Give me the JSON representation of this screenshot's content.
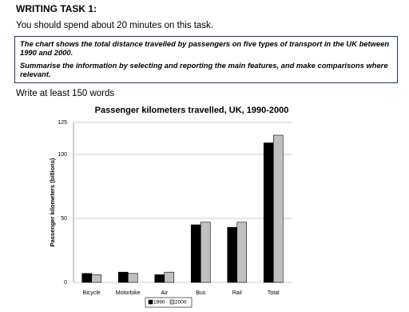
{
  "header": {
    "title": "WRITING TASK 1:",
    "instruction": "You should spend about 20 minutes on this task."
  },
  "box": {
    "paragraphs": [
      "The chart shows the total distance travelled by passengers on five types of transport in the UK between 1990 and 2000.",
      "Summarise the information by selecting and reporting the main features, and make comparisons where relevant."
    ]
  },
  "footer": "Write at least 150 words",
  "chart_data": {
    "type": "bar",
    "title": "Passenger kilometers travelled, UK, 1990-2000",
    "y_label": "Passenger kilometers (billions)",
    "categories": [
      "Bicycle",
      "Motorbike",
      "Air",
      "Bus",
      "Rail",
      "Total"
    ],
    "series": [
      {
        "name": "1990",
        "color": "#000000",
        "values": [
          7,
          8,
          6,
          45,
          43,
          109
        ]
      },
      {
        "name": "2000",
        "color": "#c0c0c0",
        "values": [
          6,
          7,
          8,
          47,
          47,
          115
        ]
      }
    ],
    "ylim": [
      0,
      125
    ],
    "yticks": [
      0,
      50,
      100,
      125
    ],
    "grid": true,
    "legend": "bottom"
  }
}
